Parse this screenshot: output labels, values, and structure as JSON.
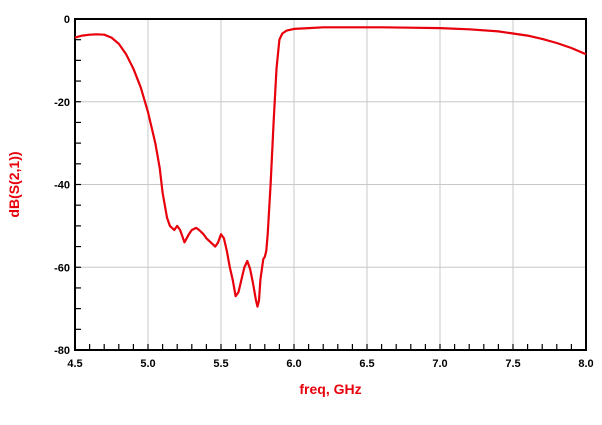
{
  "chart_data": {
    "type": "line",
    "title": "",
    "xlabel": "freq, GHz",
    "ylabel": "dB(S(2,1))",
    "xlim": [
      4.5,
      8.0
    ],
    "ylim": [
      -80,
      0
    ],
    "xticks": [
      "4.5",
      "5.0",
      "5.5",
      "6.0",
      "6.5",
      "7.0",
      "7.5",
      "8.0"
    ],
    "yticks": [
      "0",
      "-20",
      "-40",
      "-60",
      "-80"
    ],
    "grid": true,
    "colors": {
      "series": "#e8000b",
      "axis_label": "#e8000b",
      "grid": "#c8c8c8",
      "frame": "#000000"
    },
    "series": [
      {
        "x": [
          4.5,
          4.55,
          4.6,
          4.65,
          4.7,
          4.75,
          4.8,
          4.85,
          4.9,
          4.95,
          5.0,
          5.05,
          5.08,
          5.1,
          5.13,
          5.15,
          5.18,
          5.2,
          5.22,
          5.25,
          5.28,
          5.3,
          5.33,
          5.35,
          5.38,
          5.4,
          5.43,
          5.46,
          5.48,
          5.5,
          5.52,
          5.54,
          5.56,
          5.58,
          5.6,
          5.62,
          5.64,
          5.66,
          5.68,
          5.7,
          5.72,
          5.74,
          5.75,
          5.76,
          5.77,
          5.79,
          5.8,
          5.81,
          5.82,
          5.84,
          5.86,
          5.88,
          5.9,
          5.92,
          5.95,
          6.0,
          6.1,
          6.2,
          6.4,
          6.6,
          6.8,
          7.0,
          7.2,
          7.4,
          7.5,
          7.6,
          7.7,
          7.8,
          7.9,
          8.0
        ],
        "values": [
          -4.5,
          -4.0,
          -3.8,
          -3.7,
          -3.8,
          -4.5,
          -6.0,
          -8.5,
          -12.0,
          -16.5,
          -22.5,
          -30.0,
          -36.0,
          -42.0,
          -48.0,
          -50.0,
          -51.0,
          -50.0,
          -51.0,
          -54.0,
          -52.0,
          -51.0,
          -50.5,
          -51.0,
          -52.0,
          -53.0,
          -54.0,
          -55.0,
          -54.0,
          -52.0,
          -53.0,
          -56.0,
          -60.0,
          -63.0,
          -67.0,
          -66.0,
          -63.0,
          -60.0,
          -58.5,
          -60.5,
          -64.0,
          -68.0,
          -69.5,
          -68.0,
          -63.0,
          -58.0,
          -57.5,
          -56.0,
          -52.0,
          -40.0,
          -25.0,
          -12.0,
          -5.0,
          -3.5,
          -2.8,
          -2.4,
          -2.2,
          -2.0,
          -2.0,
          -2.0,
          -2.1,
          -2.2,
          -2.5,
          -3.0,
          -3.5,
          -4.0,
          -4.8,
          -5.8,
          -7.0,
          -8.5
        ]
      }
    ]
  }
}
